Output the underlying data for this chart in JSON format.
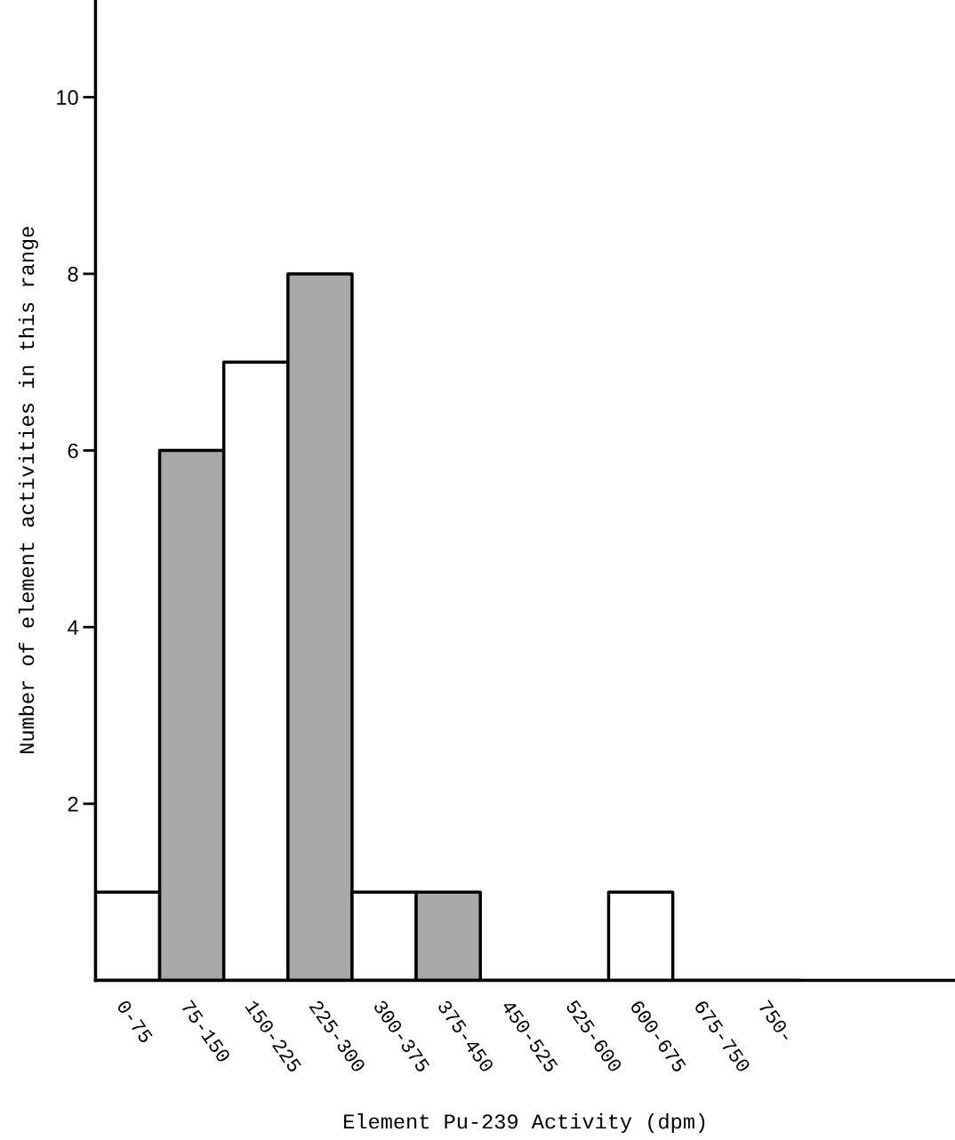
{
  "chart_data": {
    "type": "bar",
    "xlabel": "Element Pu-239 Activity (dpm)",
    "ylabel": "Number of element activities in this range",
    "categories": [
      "0-75",
      "75-150",
      "150-225",
      "225-300",
      "300-375",
      "375-450",
      "450-525",
      "525-600",
      "600-675",
      "675-750",
      "750-"
    ],
    "values": [
      1,
      6,
      7,
      8,
      1,
      1,
      0,
      0,
      1,
      0,
      0
    ],
    "colors": [
      "#ffffff",
      "#a8a8a8",
      "#ffffff",
      "#a8a8a8",
      "#ffffff",
      "#a8a8a8",
      "#ffffff",
      "#a8a8a8",
      "#ffffff",
      "#a8a8a8",
      "#ffffff"
    ],
    "ylim": [
      0,
      11.1
    ],
    "yticks": [
      2,
      4,
      6,
      8,
      10
    ],
    "grid": false,
    "legend": false
  }
}
